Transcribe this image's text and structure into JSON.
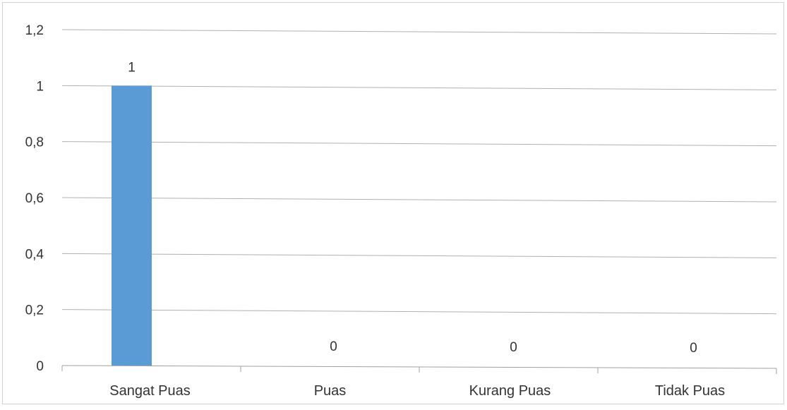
{
  "chart_data": {
    "type": "bar",
    "categories": [
      "Sangat Puas",
      "Puas",
      "Kurang Puas",
      "Tidak Puas"
    ],
    "values": [
      1,
      0,
      0,
      0
    ],
    "data_labels": [
      "1",
      "0",
      "0",
      "0"
    ],
    "y_ticks": [
      "0",
      "0,2",
      "0,4",
      "0,6",
      "0,8",
      "1",
      "1,2"
    ],
    "ylim": [
      0,
      1.2
    ],
    "grid": true,
    "legend": "none",
    "bar_color": "#5b9bd5",
    "grid_color": "#b0b0b0"
  }
}
